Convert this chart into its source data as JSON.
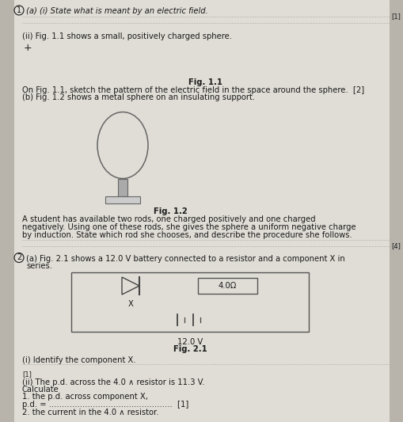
{
  "bg_color": "#b8b4ac",
  "paper_color": "#e0ddd6",
  "text_color": "#1a1a1a",
  "dark_text": "#333333",
  "dot_color": "#888888",
  "title_q1": "(a) (i) State what is meant by an electric field.",
  "ii_text": "(ii) Fig. 1.1 shows a small, positively charged sphere.",
  "plus_symbol": "+",
  "fig11_label": "Fig. 1.1",
  "fig11_caption1": "On Fig. 1.1, sketch the pattern of the electric field in the space around the sphere.  [2]",
  "fig12_caption": "(b) Fig. 1.2 shows a metal sphere on an insulating support.",
  "fig12_label": "Fig. 1.2",
  "student_text1": "A student has available two rods, one charged positively and one charged",
  "student_text2": "negatively. Using one of these rods, she gives the sphere a uniform negative charge",
  "student_text3": "by induction. State which rod she chooses, and describe the procedure she follows.",
  "q2_text": "(a) Fig. 2.1 shows a 12.0 V battery connected to a resistor and a component X in",
  "q2_text2": "series.",
  "x_label": "X",
  "resistor_label": "4.0Ω",
  "battery_label": "12.0 V",
  "fig21_label": "Fig. 2.1",
  "identify_text": "(i) Identify the component X.",
  "mark1": "[1]",
  "ii_calc": "(ii) The p.d. across the 4.0 ∧ resistor is 11.3 V.",
  "calculate": "Calculate",
  "pd_text": "1. the p.d. across component X,",
  "pd_line": "p.d. = ................................................  [1]",
  "current_text": "2. the current in the 4.0 ∧ resistor."
}
